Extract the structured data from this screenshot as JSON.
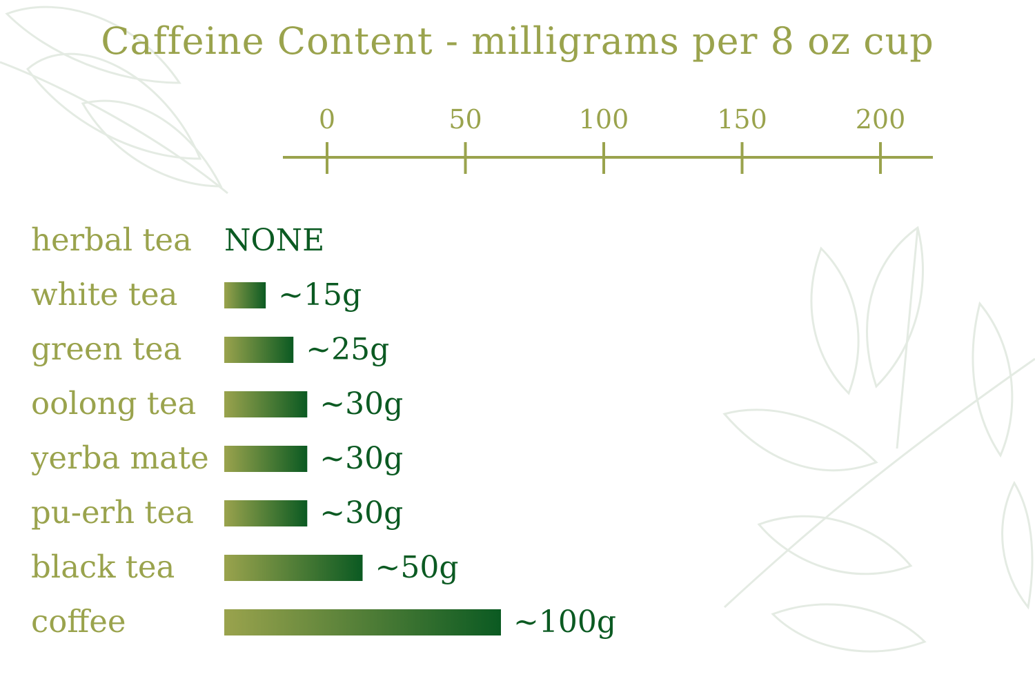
{
  "chart_data": {
    "type": "bar",
    "orientation": "horizontal",
    "title": "Caffeine Content - milligrams per 8 oz cup",
    "xlabel": "",
    "ylabel": "",
    "xlim": [
      0,
      200
    ],
    "ticks": [
      "0",
      "50",
      "100",
      "150",
      "200"
    ],
    "tick_values": [
      0,
      50,
      100,
      150,
      200
    ],
    "categories": [
      "herbal tea",
      "white tea",
      "green tea",
      "oolong tea",
      "yerba mate",
      "pu-erh tea",
      "black tea",
      "coffee"
    ],
    "values": [
      0,
      15,
      25,
      30,
      30,
      30,
      50,
      100
    ],
    "value_labels": [
      "NONE",
      "~15g",
      "~25g",
      "~30g",
      "~30g",
      "~30g",
      "~50g",
      "~100g"
    ],
    "grid": false,
    "legend": "none",
    "axis_position": "top"
  },
  "colors": {
    "label": "#9aa34d",
    "axis": "#9aa34d",
    "bar_start": "#9aa34d",
    "bar_end": "#0b5a22",
    "value_text": "#0b5a22",
    "leaf_decoration": "#e4ebe3"
  },
  "decoration": "leaf-icon"
}
